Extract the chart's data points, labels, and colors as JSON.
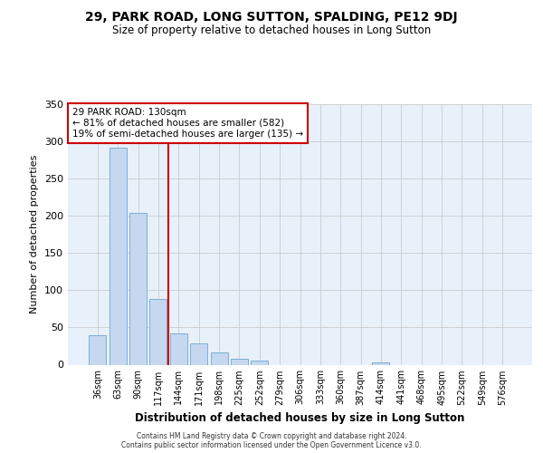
{
  "title1": "29, PARK ROAD, LONG SUTTON, SPALDING, PE12 9DJ",
  "title2": "Size of property relative to detached houses in Long Sutton",
  "xlabel": "Distribution of detached houses by size in Long Sutton",
  "ylabel": "Number of detached properties",
  "bar_values": [
    40,
    291,
    204,
    88,
    42,
    29,
    17,
    8,
    5,
    0,
    0,
    0,
    0,
    0,
    3,
    0,
    0,
    0,
    0,
    0,
    0
  ],
  "bar_labels": [
    "36sqm",
    "63sqm",
    "90sqm",
    "117sqm",
    "144sqm",
    "171sqm",
    "198sqm",
    "225sqm",
    "252sqm",
    "279sqm",
    "306sqm",
    "333sqm",
    "360sqm",
    "387sqm",
    "414sqm",
    "441sqm",
    "468sqm",
    "495sqm",
    "522sqm",
    "549sqm",
    "576sqm"
  ],
  "bar_color": "#c5d8f0",
  "bar_edge_color": "#7bafd4",
  "grid_color": "#cccccc",
  "bg_color": "#e8f0fa",
  "vline_color": "#cc0000",
  "annotation_text": "29 PARK ROAD: 130sqm\n← 81% of detached houses are smaller (582)\n19% of semi-detached houses are larger (135) →",
  "annotation_box_color": "#ffffff",
  "annotation_box_edge": "#cc0000",
  "ylim": [
    0,
    350
  ],
  "yticks": [
    0,
    50,
    100,
    150,
    200,
    250,
    300,
    350
  ],
  "footer1": "Contains HM Land Registry data © Crown copyright and database right 2024.",
  "footer2": "Contains public sector information licensed under the Open Government Licence v3.0."
}
